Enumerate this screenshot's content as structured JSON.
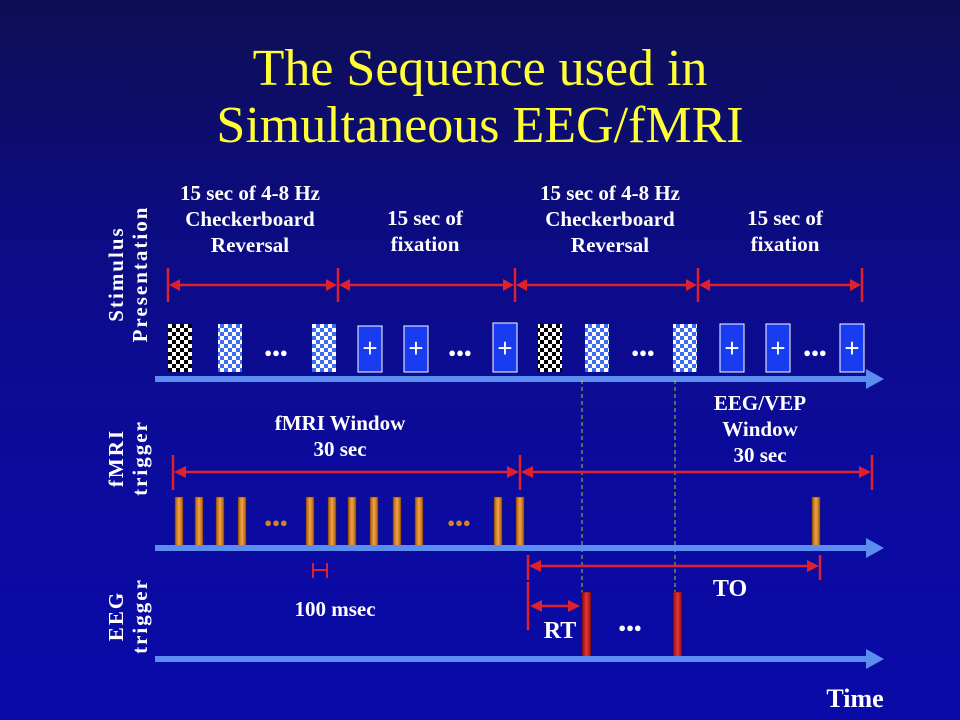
{
  "slide": {
    "title_line1": "The Sequence used in",
    "title_line2": "Simultaneous EEG/fMRI"
  },
  "stimulus": {
    "row_label_line1": "Stimulus",
    "row_label_line2": "Presentation",
    "periods": [
      {
        "line1": "15 sec of 4-8 Hz",
        "line2": "Checkerboard",
        "line3": "Reversal"
      },
      {
        "line1": "15 sec of",
        "line2": "fixation"
      },
      {
        "line1": "15 sec of 4-8 Hz",
        "line2": "Checkerboard",
        "line3": "Reversal"
      },
      {
        "line1": "15 sec of",
        "line2": "fixation"
      }
    ],
    "fixation_symbol": "+",
    "ellipsis": "●●●"
  },
  "fmri": {
    "row_label_line1": "fMRI",
    "row_label_line2": "trigger",
    "window_label_line1": "fMRI Window",
    "window_label_line2": "30 sec",
    "eeg_window_line1": "EEG/VEP",
    "eeg_window_line2": "Window",
    "eeg_window_line3": "30 sec",
    "pulse_width_label": "100 msec"
  },
  "eeg": {
    "row_label_line1": "EEG",
    "row_label_line2": "trigger",
    "rt_label": "RT",
    "to_label": "TO"
  },
  "axis": {
    "time_label": "Time"
  },
  "colors": {
    "background": "#0c0c8c",
    "title": "#ffff33",
    "timeline": "#5b8cf0",
    "arrow_red": "#e0202a",
    "trigger_orange": "#d8821e",
    "eeg_trigger_red": "#cc1a22",
    "fixation_block": "#1a3cf0",
    "dashed_marker": "#9acd32"
  }
}
